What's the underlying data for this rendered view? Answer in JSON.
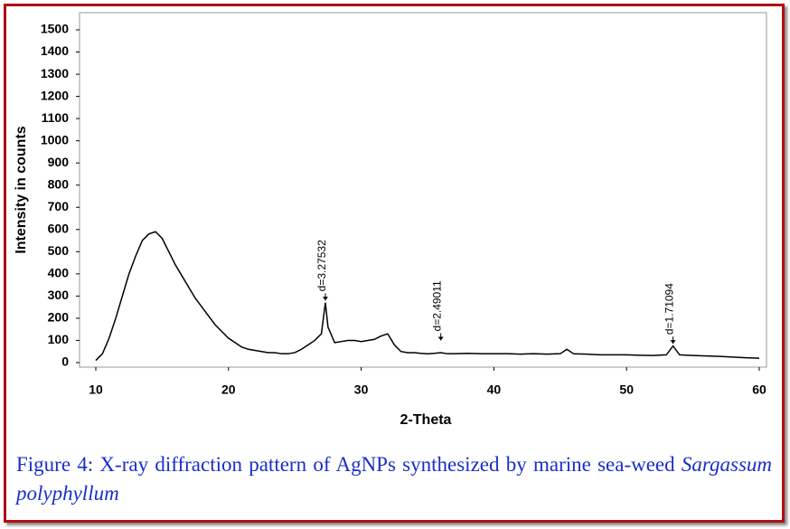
{
  "chart_data": {
    "type": "line",
    "xlabel": "2-Theta",
    "ylabel": "Intensity in counts",
    "xlim": [
      10,
      60
    ],
    "xticks": [
      10,
      20,
      30,
      40,
      50,
      60
    ],
    "ylim": [
      0,
      1500
    ],
    "yticks": [
      0,
      100,
      200,
      300,
      400,
      500,
      600,
      700,
      800,
      900,
      1000,
      1100,
      1200,
      1300,
      1400,
      1500
    ],
    "color": "#000000",
    "x": [
      10,
      10.5,
      11,
      11.5,
      12,
      12.5,
      13,
      13.5,
      14,
      14.5,
      15,
      15.5,
      16,
      16.5,
      17,
      17.5,
      18,
      18.5,
      19,
      19.5,
      20,
      20.5,
      21,
      21.5,
      22,
      22.5,
      23,
      23.5,
      24,
      24.5,
      25,
      25.5,
      26,
      26.5,
      27,
      27.3,
      27.5,
      28,
      28.5,
      29,
      29.5,
      30,
      30.5,
      31,
      31.5,
      32,
      32.5,
      33,
      33.5,
      34,
      34.5,
      35,
      35.5,
      36,
      36.5,
      37,
      38,
      39,
      40,
      41,
      42,
      43,
      44,
      45,
      45.5,
      46,
      47,
      48,
      49,
      50,
      51,
      52,
      53,
      53.5,
      54,
      55,
      56,
      57,
      58,
      59,
      60
    ],
    "values": [
      10,
      40,
      110,
      200,
      300,
      400,
      480,
      550,
      580,
      590,
      560,
      500,
      440,
      390,
      340,
      290,
      250,
      210,
      170,
      140,
      110,
      90,
      70,
      60,
      55,
      50,
      45,
      45,
      40,
      40,
      45,
      60,
      80,
      100,
      130,
      270,
      160,
      90,
      95,
      100,
      100,
      95,
      100,
      105,
      120,
      130,
      80,
      50,
      45,
      45,
      42,
      40,
      42,
      45,
      40,
      40,
      42,
      40,
      40,
      40,
      38,
      40,
      38,
      40,
      60,
      40,
      38,
      35,
      35,
      35,
      33,
      32,
      35,
      75,
      35,
      32,
      30,
      28,
      25,
      22,
      20
    ],
    "annotations": [
      {
        "x": 27.3,
        "y": 280,
        "label": "d=3.27532"
      },
      {
        "x": 36,
        "y": 100,
        "label": "d=2.49011"
      },
      {
        "x": 53.5,
        "y": 85,
        "label": "d=1.71094"
      }
    ]
  },
  "caption": {
    "text": "Figure 4: X-ray diffraction pattern of AgNPs synthesized by marine sea-weed",
    "species": "Sargassum polyphyllum"
  }
}
